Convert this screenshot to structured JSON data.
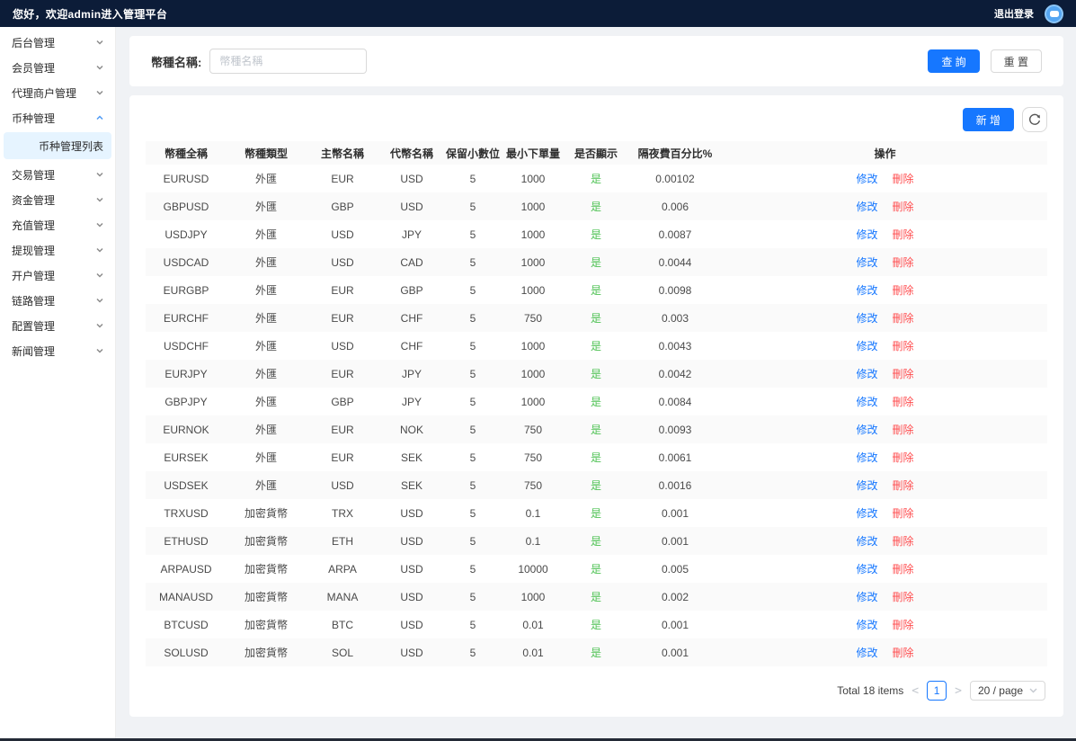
{
  "topbar": {
    "greeting": "您好，欢迎admin进入管理平台",
    "logout_label": "退出登录"
  },
  "sidebar": {
    "items": [
      {
        "label": "后台管理",
        "expanded": false
      },
      {
        "label": "会员管理",
        "expanded": false
      },
      {
        "label": "代理商户管理",
        "expanded": false
      },
      {
        "label": "币种管理",
        "expanded": true,
        "children": [
          {
            "label": "币种管理列表",
            "active": true
          }
        ]
      },
      {
        "label": "交易管理",
        "expanded": false
      },
      {
        "label": "资金管理",
        "expanded": false
      },
      {
        "label": "充值管理",
        "expanded": false
      },
      {
        "label": "提现管理",
        "expanded": false
      },
      {
        "label": "开户管理",
        "expanded": false
      },
      {
        "label": "链路管理",
        "expanded": false
      },
      {
        "label": "配置管理",
        "expanded": false
      },
      {
        "label": "新闻管理",
        "expanded": false
      }
    ]
  },
  "search": {
    "label": "幣種名稱:",
    "placeholder": "幣種名稱",
    "query_label": "查 詢",
    "reset_label": "重 置"
  },
  "toolbar": {
    "add_label": "新 增",
    "refresh_icon": "refresh-icon"
  },
  "table": {
    "columns": [
      "幣種全稱",
      "幣種類型",
      "主幣名稱",
      "代幣名稱",
      "保留小數位",
      "最小下單量",
      "是否顯示",
      "隔夜費百分比%",
      "操作"
    ],
    "rows": [
      [
        "EURUSD",
        "外匯",
        "EUR",
        "USD",
        "5",
        "1000",
        "是",
        "0.00102"
      ],
      [
        "GBPUSD",
        "外匯",
        "GBP",
        "USD",
        "5",
        "1000",
        "是",
        "0.006"
      ],
      [
        "USDJPY",
        "外匯",
        "USD",
        "JPY",
        "5",
        "1000",
        "是",
        "0.0087"
      ],
      [
        "USDCAD",
        "外匯",
        "USD",
        "CAD",
        "5",
        "1000",
        "是",
        "0.0044"
      ],
      [
        "EURGBP",
        "外匯",
        "EUR",
        "GBP",
        "5",
        "1000",
        "是",
        "0.0098"
      ],
      [
        "EURCHF",
        "外匯",
        "EUR",
        "CHF",
        "5",
        "750",
        "是",
        "0.003"
      ],
      [
        "USDCHF",
        "外匯",
        "USD",
        "CHF",
        "5",
        "1000",
        "是",
        "0.0043"
      ],
      [
        "EURJPY",
        "外匯",
        "EUR",
        "JPY",
        "5",
        "1000",
        "是",
        "0.0042"
      ],
      [
        "GBPJPY",
        "外匯",
        "GBP",
        "JPY",
        "5",
        "1000",
        "是",
        "0.0084"
      ],
      [
        "EURNOK",
        "外匯",
        "EUR",
        "NOK",
        "5",
        "750",
        "是",
        "0.0093"
      ],
      [
        "EURSEK",
        "外匯",
        "EUR",
        "SEK",
        "5",
        "750",
        "是",
        "0.0061"
      ],
      [
        "USDSEK",
        "外匯",
        "USD",
        "SEK",
        "5",
        "750",
        "是",
        "0.0016"
      ],
      [
        "TRXUSD",
        "加密貨幣",
        "TRX",
        "USD",
        "5",
        "0.1",
        "是",
        "0.001"
      ],
      [
        "ETHUSD",
        "加密貨幣",
        "ETH",
        "USD",
        "5",
        "0.1",
        "是",
        "0.001"
      ],
      [
        "ARPAUSD",
        "加密貨幣",
        "ARPA",
        "USD",
        "5",
        "10000",
        "是",
        "0.005"
      ],
      [
        "MANAUSD",
        "加密貨幣",
        "MANA",
        "USD",
        "5",
        "1000",
        "是",
        "0.002"
      ],
      [
        "BTCUSD",
        "加密貨幣",
        "BTC",
        "USD",
        "5",
        "0.01",
        "是",
        "0.001"
      ],
      [
        "SOLUSD",
        "加密貨幣",
        "SOL",
        "USD",
        "5",
        "0.01",
        "是",
        "0.001"
      ]
    ],
    "actions": {
      "edit_label": "修改",
      "delete_label": "刪除"
    }
  },
  "pagination": {
    "total_label": "Total 18 items",
    "prev_icon": "<",
    "current_page": "1",
    "next_icon": ">",
    "page_size_label": "20 / page"
  },
  "colors": {
    "topbar_bg": "#0c1c38",
    "primary_blue": "#1677ff",
    "danger_red": "#ff4d4f",
    "success_green": "#4fc254",
    "selected_menu_bg": "#e6f4ff",
    "stripe_bg": "#fafafa",
    "content_bg": "#f0f2f5"
  }
}
